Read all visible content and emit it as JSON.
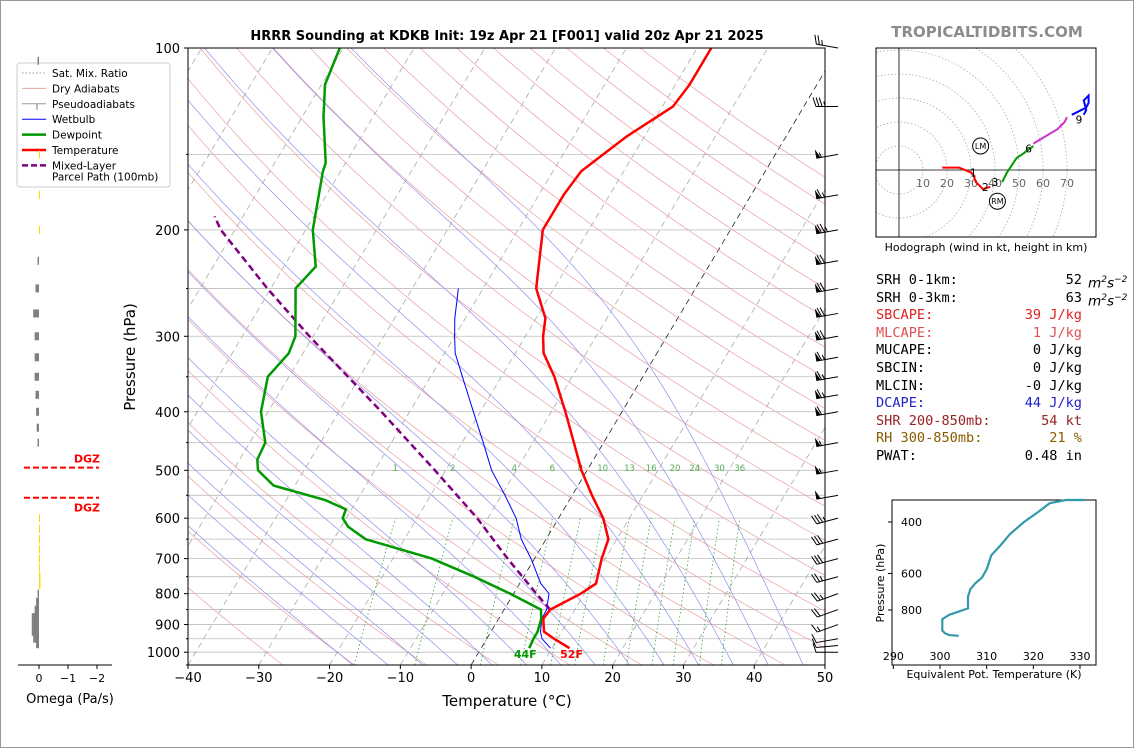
{
  "chart_data": [
    {
      "type": "skew-t",
      "title": "HRRR Sounding at KDKB Init: 19z Apr 21 [F001] valid 20z Apr 21 2025",
      "xlabel": "Temperature (°C)",
      "ylabel": "Pressure (hPa)",
      "xlim": [
        -40,
        50
      ],
      "ylim": [
        1050,
        100
      ],
      "y_scale": "log",
      "x_ticks": [
        -40,
        -30,
        -20,
        -10,
        0,
        10,
        20,
        30,
        40,
        50
      ],
      "y_ticks": [
        100,
        200,
        300,
        400,
        500,
        600,
        700,
        800,
        900,
        1000
      ],
      "legend": [
        "Sat. Mix. Ratio",
        "Dry Adiabats",
        "Pseudoadiabats",
        "Wetbulb",
        "Dewpoint",
        "Temperature",
        "Mixed-Layer\nParcel Path (100mb)"
      ],
      "legend_position": "upper-left",
      "colors": {
        "temperature": "#ff0000",
        "dewpoint": "#009900",
        "wetbulb": "#0000ff",
        "parcel": "#800080",
        "dry_adiabat": "#e8a0a0",
        "moist_adiabat": "#9090ee",
        "mixing_ratio": "#33aa33"
      },
      "mixing_ratio_labels": [
        "1",
        "2",
        "4",
        "6",
        "8",
        "10",
        "13",
        "16",
        "20",
        "24",
        "30",
        "36"
      ],
      "mixing_ratio_values": [
        1,
        2,
        4,
        6,
        8,
        10,
        13,
        16,
        20,
        24,
        30,
        36
      ],
      "surface_labels": {
        "dewpoint": "44F",
        "temperature": "52F"
      },
      "temperature": [
        {
          "p": 985,
          "t": 12.5
        },
        {
          "p": 950,
          "t": 9.5
        },
        {
          "p": 925,
          "t": 7.5
        },
        {
          "p": 880,
          "t": 6.3
        },
        {
          "p": 850,
          "t": 6.5
        },
        {
          "p": 800,
          "t": 9.5
        },
        {
          "p": 770,
          "t": 10.8
        },
        {
          "p": 700,
          "t": 9.5
        },
        {
          "p": 650,
          "t": 8.8
        },
        {
          "p": 600,
          "t": 6.3
        },
        {
          "p": 550,
          "t": 2.8
        },
        {
          "p": 500,
          "t": -0.8
        },
        {
          "p": 450,
          "t": -4.2
        },
        {
          "p": 400,
          "t": -8.0
        },
        {
          "p": 350,
          "t": -12.5
        },
        {
          "p": 320,
          "t": -16.0
        },
        {
          "p": 300,
          "t": -17.5
        },
        {
          "p": 280,
          "t": -18.7
        },
        {
          "p": 250,
          "t": -22.5
        },
        {
          "p": 200,
          "t": -26.5
        },
        {
          "p": 175,
          "t": -26.5
        },
        {
          "p": 160,
          "t": -26.0
        },
        {
          "p": 140,
          "t": -22.5
        },
        {
          "p": 125,
          "t": -18.5
        },
        {
          "p": 115,
          "t": -18.0
        },
        {
          "p": 100,
          "t": -18.0
        }
      ],
      "dewpoint": [
        {
          "p": 985,
          "t": 6.8
        },
        {
          "p": 950,
          "t": 6.6
        },
        {
          "p": 925,
          "t": 6.6
        },
        {
          "p": 880,
          "t": 6.0
        },
        {
          "p": 850,
          "t": 5.2
        },
        {
          "p": 800,
          "t": -0.5
        },
        {
          "p": 750,
          "t": -7.0
        },
        {
          "p": 700,
          "t": -14.5
        },
        {
          "p": 650,
          "t": -25.5
        },
        {
          "p": 620,
          "t": -29.0
        },
        {
          "p": 600,
          "t": -30.5
        },
        {
          "p": 580,
          "t": -30.8
        },
        {
          "p": 560,
          "t": -34.5
        },
        {
          "p": 530,
          "t": -43.0
        },
        {
          "p": 500,
          "t": -46.5
        },
        {
          "p": 480,
          "t": -47.5
        },
        {
          "p": 450,
          "t": -47.8
        },
        {
          "p": 400,
          "t": -51.0
        },
        {
          "p": 350,
          "t": -53.0
        },
        {
          "p": 320,
          "t": -52.0
        },
        {
          "p": 300,
          "t": -52.5
        },
        {
          "p": 250,
          "t": -56.5
        },
        {
          "p": 230,
          "t": -55.5
        },
        {
          "p": 200,
          "t": -59.0
        },
        {
          "p": 160,
          "t": -62.5
        },
        {
          "p": 155,
          "t": -62.8
        },
        {
          "p": 130,
          "t": -67.0
        },
        {
          "p": 115,
          "t": -69.5
        },
        {
          "p": 100,
          "t": -70.5
        }
      ],
      "wetbulb": [
        {
          "p": 985,
          "t": 9.8
        },
        {
          "p": 950,
          "t": 7.8
        },
        {
          "p": 925,
          "t": 7.0
        },
        {
          "p": 880,
          "t": 6.1
        },
        {
          "p": 850,
          "t": 6.0
        },
        {
          "p": 800,
          "t": 5.0
        },
        {
          "p": 770,
          "t": 3.0
        },
        {
          "p": 700,
          "t": -0.5
        },
        {
          "p": 650,
          "t": -3.5
        },
        {
          "p": 600,
          "t": -6.0
        },
        {
          "p": 550,
          "t": -9.5
        },
        {
          "p": 500,
          "t": -13.5
        },
        {
          "p": 450,
          "t": -17.0
        },
        {
          "p": 400,
          "t": -21.0
        },
        {
          "p": 350,
          "t": -25.5
        },
        {
          "p": 320,
          "t": -28.5
        },
        {
          "p": 300,
          "t": -30.0
        },
        {
          "p": 280,
          "t": -31.5
        },
        {
          "p": 250,
          "t": -33.5
        }
      ],
      "parcel": [
        {
          "p": 850,
          "t": 6.5
        },
        {
          "p": 800,
          "t": 3.2
        },
        {
          "p": 700,
          "t": -3.8
        },
        {
          "p": 600,
          "t": -11.5
        },
        {
          "p": 500,
          "t": -21.5
        },
        {
          "p": 400,
          "t": -34.0
        },
        {
          "p": 300,
          "t": -50.5
        },
        {
          "p": 250,
          "t": -60.5
        },
        {
          "p": 200,
          "t": -72.0
        },
        {
          "p": 190,
          "t": -74.0
        }
      ],
      "dgz_top_hPa": 495,
      "dgz_bottom_hPa": 555,
      "dgz_label": "DGZ",
      "wind_barbs": [
        {
          "p": 1000,
          "dir": 270,
          "spd": 10
        },
        {
          "p": 975,
          "dir": 265,
          "spd": 10
        },
        {
          "p": 950,
          "dir": 260,
          "spd": 10
        },
        {
          "p": 900,
          "dir": 250,
          "spd": 15
        },
        {
          "p": 850,
          "dir": 250,
          "spd": 20
        },
        {
          "p": 800,
          "dir": 250,
          "spd": 25
        },
        {
          "p": 750,
          "dir": 255,
          "spd": 25
        },
        {
          "p": 700,
          "dir": 255,
          "spd": 30
        },
        {
          "p": 650,
          "dir": 255,
          "spd": 30
        },
        {
          "p": 600,
          "dir": 255,
          "spd": 35
        },
        {
          "p": 550,
          "dir": 260,
          "spd": 50
        },
        {
          "p": 500,
          "dir": 260,
          "spd": 55
        },
        {
          "p": 450,
          "dir": 260,
          "spd": 55
        },
        {
          "p": 400,
          "dir": 260,
          "spd": 60
        },
        {
          "p": 375,
          "dir": 260,
          "spd": 65
        },
        {
          "p": 350,
          "dir": 260,
          "spd": 65
        },
        {
          "p": 325,
          "dir": 260,
          "spd": 65
        },
        {
          "p": 300,
          "dir": 260,
          "spd": 70
        },
        {
          "p": 275,
          "dir": 260,
          "spd": 70
        },
        {
          "p": 250,
          "dir": 260,
          "spd": 70
        },
        {
          "p": 225,
          "dir": 260,
          "spd": 70
        },
        {
          "p": 200,
          "dir": 260,
          "spd": 75
        },
        {
          "p": 175,
          "dir": 260,
          "spd": 65
        },
        {
          "p": 150,
          "dir": 260,
          "spd": 55
        },
        {
          "p": 125,
          "dir": 270,
          "spd": 35
        },
        {
          "p": 100,
          "dir": 280,
          "spd": 25
        }
      ]
    },
    {
      "type": "line",
      "title": "",
      "xlabel": "Omega (Pa/s)",
      "ylabel": "",
      "xlim": [
        0.4,
        -2.2
      ],
      "ylim": [
        1050,
        100
      ],
      "x_ticks": [
        0,
        -1,
        -2
      ],
      "x_tick_labels": [
        "0",
        "−1",
        "−2"
      ],
      "series": [
        {
          "color": "#808080",
          "values": [
            {
              "p": 970,
              "omega": 0.1
            },
            {
              "p": 950,
              "omega": 0.2
            },
            {
              "p": 925,
              "omega": 0.25
            },
            {
              "p": 900,
              "omega": 0.25
            },
            {
              "p": 875,
              "omega": 0.25
            },
            {
              "p": 850,
              "omega": 0.15
            },
            {
              "p": 825,
              "omega": 0.1
            },
            {
              "p": 800,
              "omega": 0.05
            },
            {
              "p": 450,
              "omega": 0.05
            },
            {
              "p": 425,
              "omega": 0.08
            },
            {
              "p": 400,
              "omega": 0.1
            },
            {
              "p": 375,
              "omega": 0.12
            },
            {
              "p": 350,
              "omega": 0.15
            },
            {
              "p": 325,
              "omega": 0.15
            },
            {
              "p": 300,
              "omega": 0.15
            },
            {
              "p": 275,
              "omega": 0.2
            },
            {
              "p": 250,
              "omega": 0.12
            },
            {
              "p": 225,
              "omega": 0.05
            },
            {
              "p": 105,
              "omega": 0.05
            }
          ]
        },
        {
          "color": "#ffd700",
          "values": [
            {
              "p": 775,
              "omega": -0.05
            },
            {
              "p": 750,
              "omega": -0.05
            },
            {
              "p": 725,
              "omega": -0.03
            },
            {
              "p": 700,
              "omega": -0.03
            },
            {
              "p": 675,
              "omega": -0.03
            },
            {
              "p": 650,
              "omega": -0.02
            },
            {
              "p": 625,
              "omega": -0.02
            },
            {
              "p": 600,
              "omega": -0.01
            },
            {
              "p": 200,
              "omega": 0.0
            },
            {
              "p": 175,
              "omega": -0.02
            },
            {
              "p": 150,
              "omega": -0.02
            }
          ]
        }
      ]
    },
    {
      "type": "hodograph",
      "title": "",
      "xlabel": "Hodograph (wind in kt, height in km)",
      "ring_labels": [
        "10",
        "20",
        "30",
        "40",
        "50",
        "60",
        "70"
      ],
      "ring_values": [
        10,
        20,
        30,
        40,
        50,
        60,
        70
      ],
      "xlim": [
        -10,
        80
      ],
      "ylim": [
        -30,
        50
      ],
      "height_labels": [
        "1",
        "2",
        "3",
        "6",
        "9"
      ],
      "motion_labels": [
        "LM",
        "RM"
      ],
      "storm_motion": {
        "LM": {
          "u": 34,
          "v": 10
        },
        "RM": {
          "u": 41,
          "v": -13
        }
      },
      "segments": [
        {
          "color": "#ff0000",
          "points": [
            [
              18,
              1
            ],
            [
              25,
              1
            ],
            [
              30,
              -1
            ],
            [
              31,
              -2
            ],
            [
              32,
              -5
            ],
            [
              35,
              -8
            ],
            [
              38,
              -7
            ]
          ]
        },
        {
          "color": "#009900",
          "points": [
            [
              43,
              -5
            ],
            [
              45,
              -1
            ],
            [
              47,
              2
            ],
            [
              49,
              5
            ],
            [
              52,
              7
            ],
            [
              56,
              10
            ]
          ]
        },
        {
          "color": "#cc33cc",
          "points": [
            [
              56,
              11
            ],
            [
              61,
              14
            ],
            [
              66,
              17
            ],
            [
              69,
              20
            ],
            [
              70,
              22
            ]
          ]
        },
        {
          "color": "#0000ff",
          "points": [
            [
              72,
              23
            ],
            [
              78,
              26
            ],
            [
              79,
              28
            ],
            [
              79,
              31
            ],
            [
              77,
              29
            ],
            [
              78,
              25
            ],
            [
              77,
              23
            ]
          ]
        }
      ],
      "height_label_points": {
        "1": [
          31,
          -1
        ],
        "2": [
          36,
          -7
        ],
        "3": [
          40,
          -5
        ],
        "6": [
          54,
          9
        ],
        "9": [
          75,
          21
        ]
      }
    },
    {
      "type": "line",
      "title": "",
      "xlabel": "Equivalent Pot. Temperature (K)",
      "ylabel": "Pressure (hPa)",
      "xlim": [
        290,
        333
      ],
      "ylim": [
        1000,
        320
      ],
      "x_ticks": [
        290,
        300,
        310,
        320,
        330
      ],
      "y_ticks": [
        400,
        600,
        800
      ],
      "series": [
        {
          "color": "#3399aa",
          "values": [
            {
              "p": 980,
              "theta_e": 304
            },
            {
              "p": 975,
              "theta_e": 302
            },
            {
              "p": 960,
              "theta_e": 301
            },
            {
              "p": 940,
              "theta_e": 300.5
            },
            {
              "p": 900,
              "theta_e": 300.5
            },
            {
              "p": 860,
              "theta_e": 300.5
            },
            {
              "p": 830,
              "theta_e": 302
            },
            {
              "p": 810,
              "theta_e": 304
            },
            {
              "p": 790,
              "theta_e": 306
            },
            {
              "p": 760,
              "theta_e": 306
            },
            {
              "p": 720,
              "theta_e": 306
            },
            {
              "p": 680,
              "theta_e": 306.5
            },
            {
              "p": 650,
              "theta_e": 307.5
            },
            {
              "p": 620,
              "theta_e": 309
            },
            {
              "p": 580,
              "theta_e": 310
            },
            {
              "p": 550,
              "theta_e": 310.5
            },
            {
              "p": 520,
              "theta_e": 311
            },
            {
              "p": 480,
              "theta_e": 313
            },
            {
              "p": 440,
              "theta_e": 315
            },
            {
              "p": 400,
              "theta_e": 318
            },
            {
              "p": 370,
              "theta_e": 321
            },
            {
              "p": 345,
              "theta_e": 323.5
            },
            {
              "p": 325,
              "theta_e": 327
            },
            {
              "p": 318,
              "theta_e": 331
            }
          ]
        }
      ]
    }
  ],
  "watermark": "TROPICALTIDBITS.COM",
  "stats": [
    {
      "label": "SRH 0-1km:",
      "value": "52",
      "unit": "m2s-2",
      "color": "#000000"
    },
    {
      "label": "SRH 0-3km:",
      "value": "63",
      "unit": "m2s-2",
      "color": "#000000"
    },
    {
      "label": "SBCAPE:",
      "value": "39 J/kg",
      "unit": "",
      "color": "#dd2222"
    },
    {
      "label": "MLCAPE:",
      "value": "1 J/kg",
      "unit": "",
      "color": "#e05050"
    },
    {
      "label": "MUCAPE:",
      "value": "0 J/kg",
      "unit": "",
      "color": "#000000"
    },
    {
      "label": "SBCIN:",
      "value": "0 J/kg",
      "unit": "",
      "color": "#000000"
    },
    {
      "label": "MLCIN:",
      "value": "-0 J/kg",
      "unit": "",
      "color": "#000000"
    },
    {
      "label": "DCAPE:",
      "value": "44 J/kg",
      "unit": "",
      "color": "#2222cc"
    },
    {
      "label": "SHR 200-850mb:",
      "value": "54 kt",
      "unit": "",
      "color": "#992222"
    },
    {
      "label": "RH 300-850mb:",
      "value": "21 %",
      "unit": "",
      "color": "#8a5a00"
    },
    {
      "label": "PWAT:",
      "value": "0.48 in",
      "unit": "",
      "color": "#000000"
    }
  ]
}
